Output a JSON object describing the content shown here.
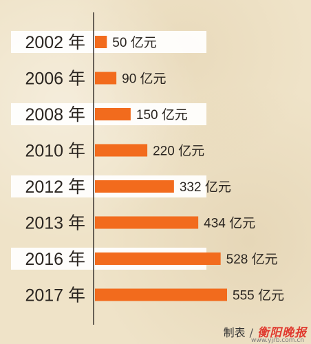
{
  "chart_data": {
    "type": "bar",
    "orientation": "horizontal",
    "categories": [
      "2002 年",
      "2006 年",
      "2008 年",
      "2010 年",
      "2012 年",
      "2013 年",
      "2016 年",
      "2017 年"
    ],
    "values": [
      50,
      90,
      150,
      220,
      332,
      434,
      528,
      555
    ],
    "value_labels": [
      "50 亿元",
      "90 亿元",
      "150 亿元",
      "220 亿元",
      "332 亿元",
      "434 亿元",
      "528 亿元",
      "555 亿元"
    ],
    "bar_color": "#f26b1d",
    "band_color": "#ffffff",
    "title": "",
    "xlabel": "",
    "ylabel": ""
  },
  "footer": {
    "credit": "制表",
    "slash": "/",
    "logo": "衡阳晚报",
    "url": "www.yjrb.com.cn"
  }
}
